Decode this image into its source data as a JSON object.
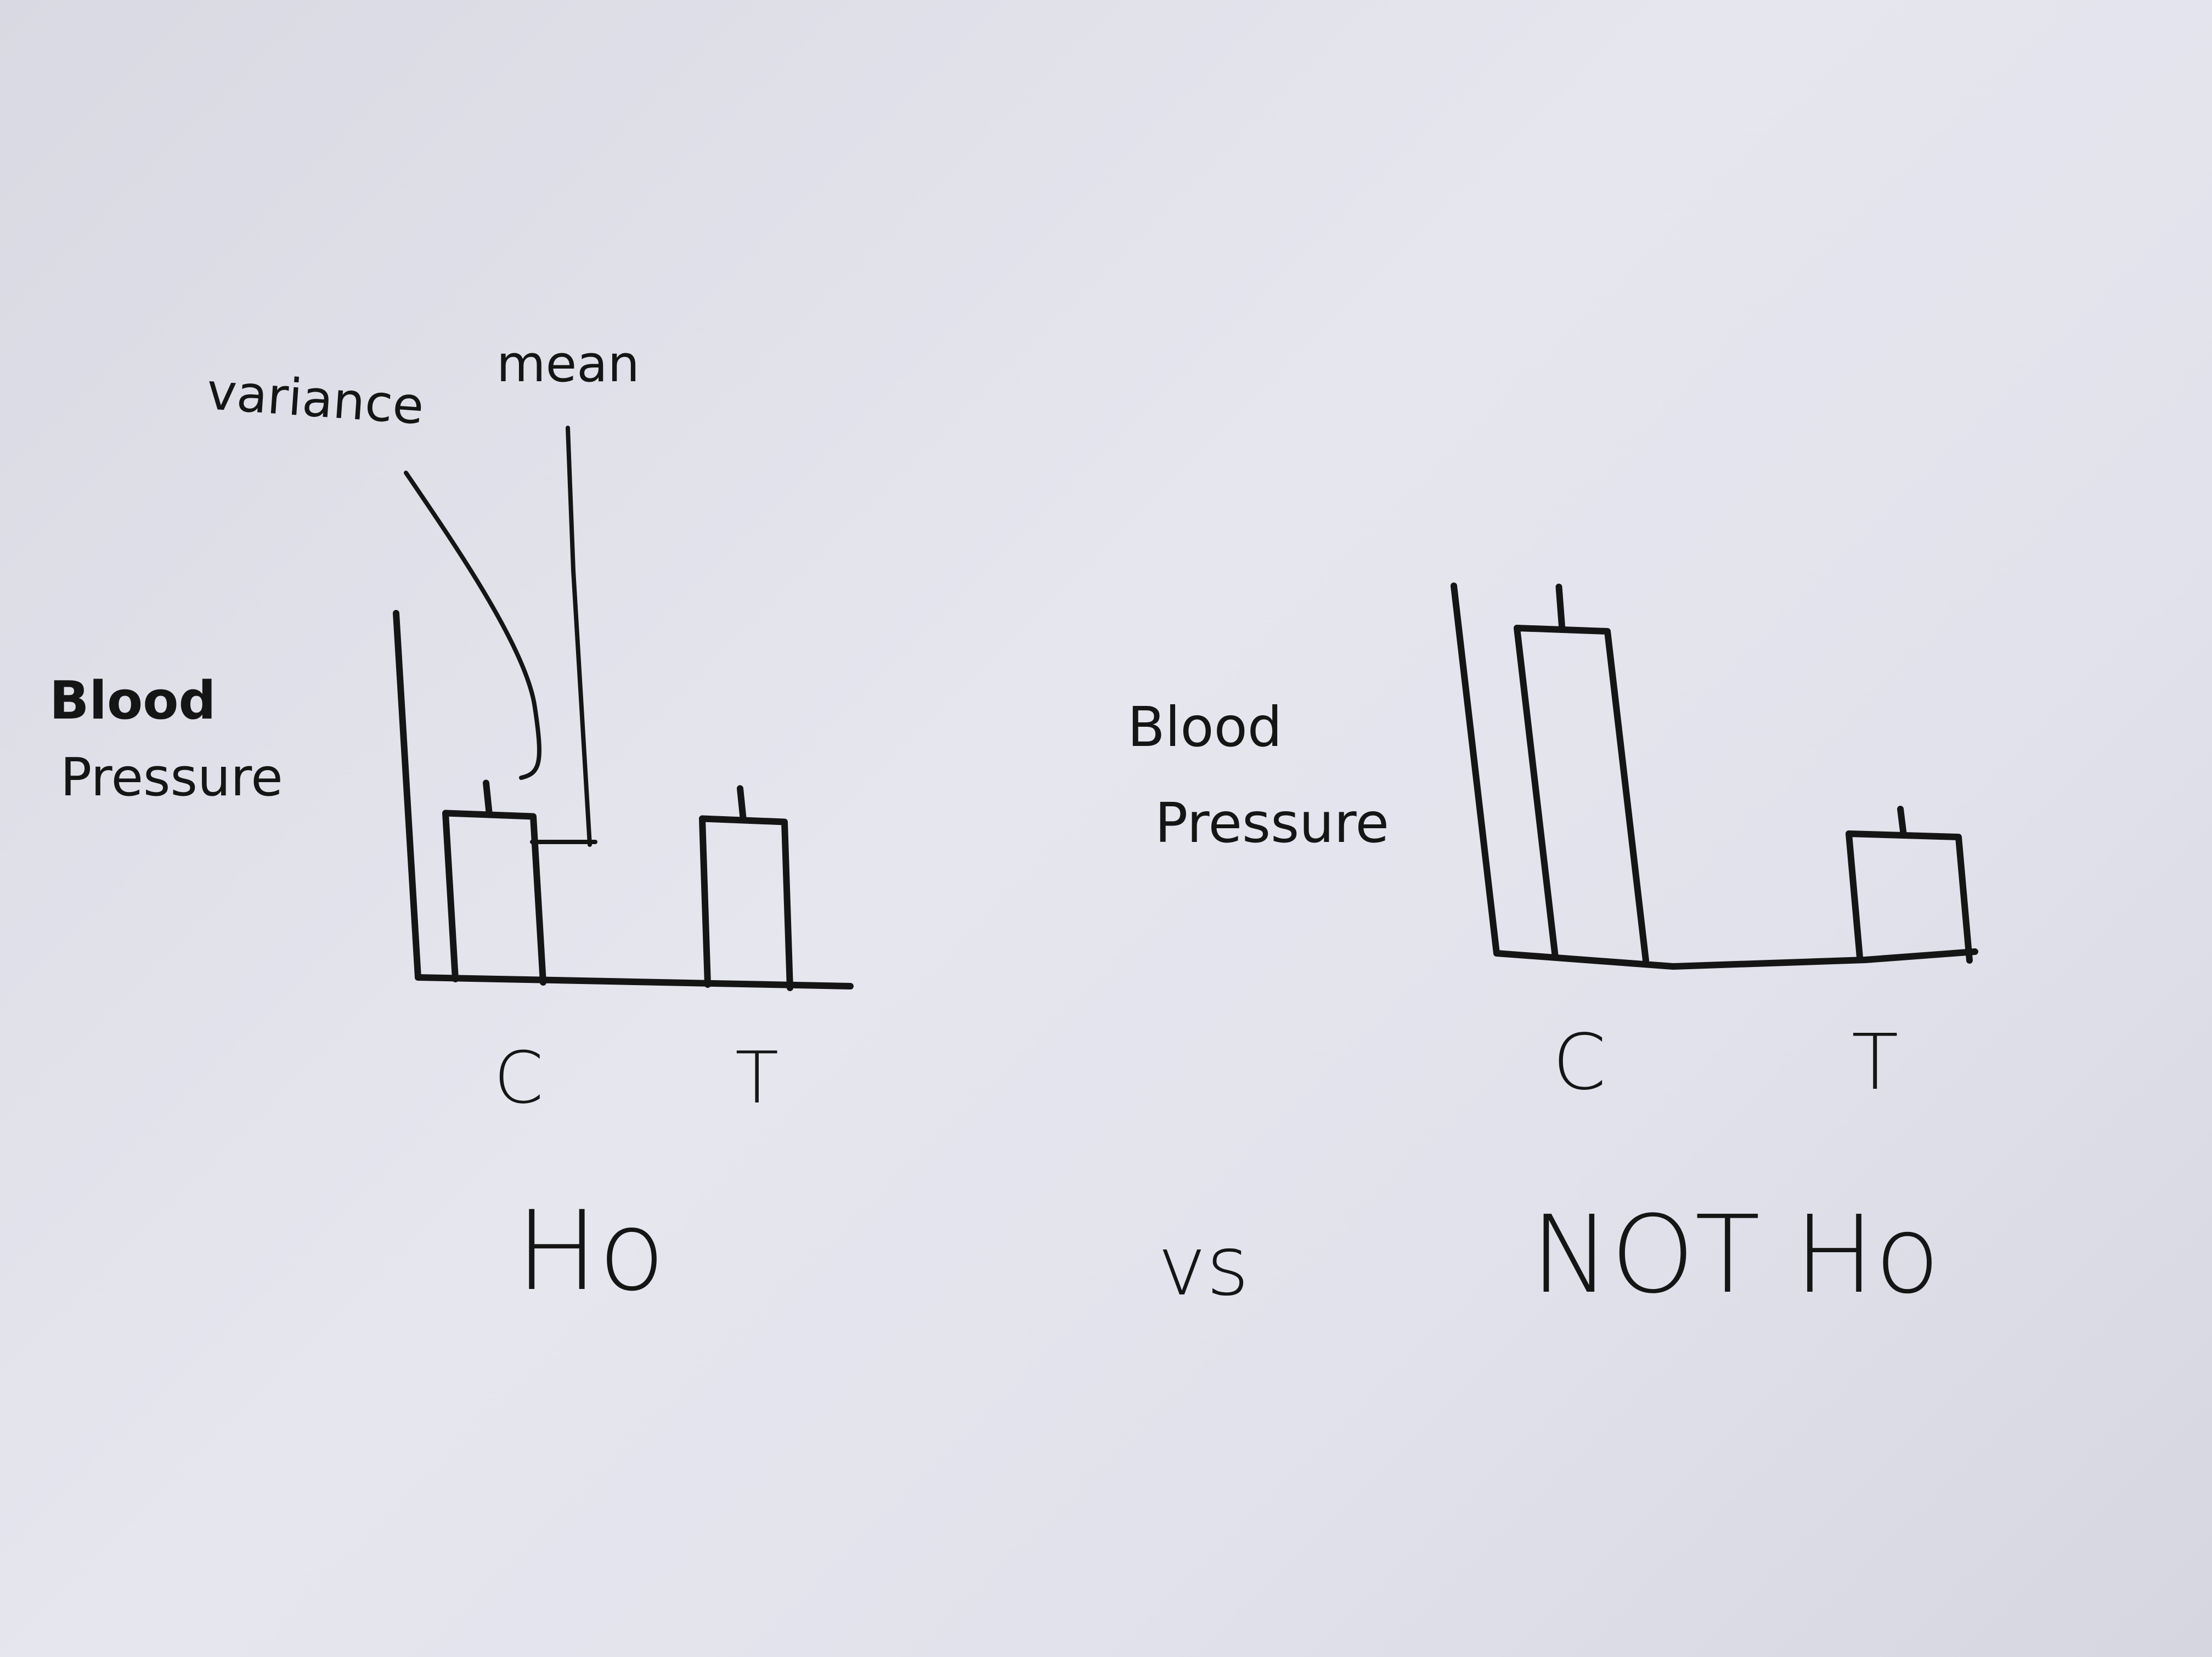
{
  "chart_data": [
    {
      "type": "bar",
      "categories": [
        "C",
        "T"
      ],
      "series": [
        {
          "values": [
            5.5,
            5.5
          ],
          "error": [
            1,
            1
          ]
        }
      ],
      "ylabel": "Blood Pressure",
      "annotations": [
        "variance",
        "mean"
      ],
      "caption": "Ho"
    },
    {
      "type": "bar",
      "categories": [
        "C",
        "T"
      ],
      "series": [
        {
          "values": [
            8,
            3
          ],
          "error": [
            1,
            0.6
          ]
        }
      ],
      "ylabel": "Blood Pressure",
      "caption": "NOT Ho"
    }
  ],
  "comparison_label": "vs",
  "ink_color": "#151515",
  "paper_color": "#e2e2ec"
}
